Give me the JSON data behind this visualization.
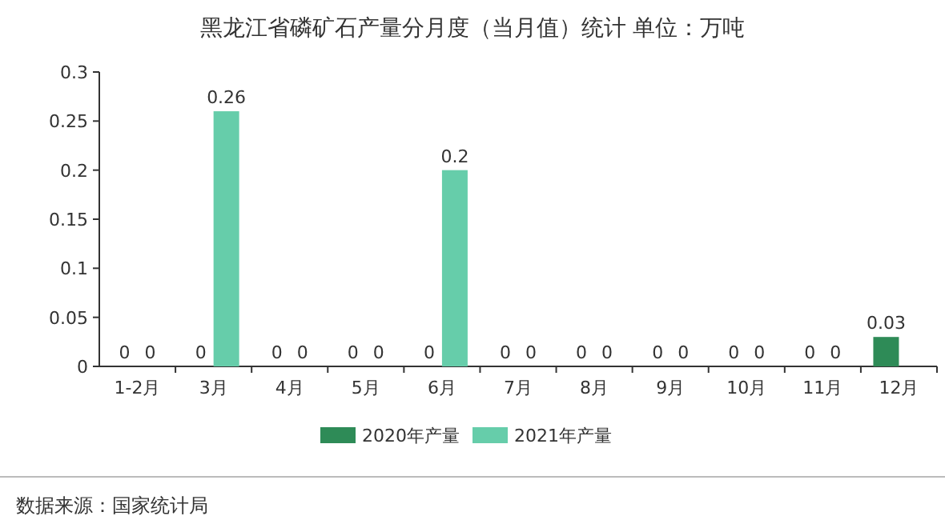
{
  "chart_data": {
    "type": "bar",
    "title": "黑龙江省磷矿石产量分月度（当月值）统计 单位：万吨",
    "categories": [
      "1-2月",
      "3月",
      "4月",
      "5月",
      "6月",
      "7月",
      "8月",
      "9月",
      "10月",
      "11月",
      "12月"
    ],
    "series": [
      {
        "name": "2020年产量",
        "color": "#2e8b57",
        "values": [
          0,
          0,
          0,
          0,
          0,
          0,
          0,
          0,
          0,
          0,
          0.03
        ]
      },
      {
        "name": "2021年产量",
        "color": "#66cdaa",
        "values": [
          0,
          0.26,
          0,
          0,
          0.2,
          0,
          0,
          0,
          0,
          0,
          null
        ]
      }
    ],
    "ylim": [
      0,
      0.3
    ],
    "yticks": [
      0,
      0.05,
      0.1,
      0.15,
      0.2,
      0.25,
      0.3
    ],
    "data_labels": true,
    "legend": "bottom",
    "annotations": [
      "数据来源：国家统计局"
    ]
  }
}
